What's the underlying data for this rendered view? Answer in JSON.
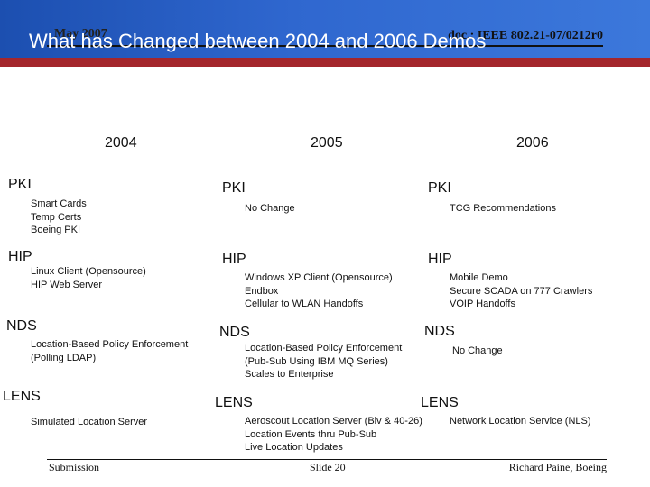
{
  "header": {
    "date": "May 2007",
    "doc_id": "doc.: IEEE 802.21-07/0212r0",
    "title": "What has Changed between 2004 and 2006 Demos"
  },
  "years": [
    "2004",
    "2005",
    "2006"
  ],
  "columns": {
    "y2004": {
      "pki": "PKI",
      "pki_details": [
        "Smart Cards",
        "Temp Certs",
        "Boeing PKI"
      ],
      "hip": "HIP",
      "hip_details": [
        "Linux Client (Opensource)",
        "HIP Web Server"
      ],
      "nds": "NDS",
      "nds_details": [
        "Location-Based Policy Enforcement",
        "(Polling LDAP)"
      ],
      "lens": "LENS",
      "lens_details": [
        "Simulated Location Server"
      ]
    },
    "y2005": {
      "pki": "PKI",
      "pki_details": [
        "No Change"
      ],
      "hip": "HIP",
      "hip_details": [
        "Windows XP Client (Opensource)",
        "Endbox",
        "Cellular to WLAN Handoffs"
      ],
      "nds": "NDS",
      "nds_details": [
        "Location-Based Policy Enforcement",
        "(Pub-Sub Using IBM MQ Series)",
        "Scales to Enterprise"
      ],
      "lens": "LENS",
      "lens_details": [
        "Aeroscout Location Server (Blv & 40-26)",
        "Location Events thru Pub-Sub",
        "Live Location Updates"
      ]
    },
    "y2006": {
      "pki": "PKI",
      "pki_details": [
        "TCG Recommendations"
      ],
      "hip": "HIP",
      "hip_details": [
        "Mobile Demo",
        "Secure SCADA on 777 Crawlers",
        "VOIP Handoffs"
      ],
      "nds": "NDS",
      "nds_details": [
        "No Change"
      ],
      "lens": "LENS",
      "lens_details": [
        "Network Location Service (NLS)"
      ]
    }
  },
  "footer": {
    "left": "Submission",
    "center": "Slide 20",
    "right": "Richard Paine, Boeing"
  },
  "colors": {
    "header_blue": "#2f67cf",
    "accent_red": "#a4262c"
  }
}
